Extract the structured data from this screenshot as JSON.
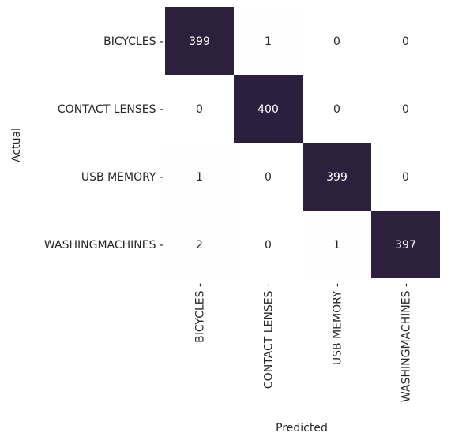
{
  "chart_data": {
    "type": "heatmap",
    "title": "",
    "xlabel": "Predicted",
    "ylabel": "Actual",
    "rows": [
      "BICYCLES",
      "CONTACT LENSES",
      "USB MEMORY",
      "WASHINGMACHINES"
    ],
    "cols": [
      "BICYCLES",
      "CONTACT LENSES",
      "USB MEMORY",
      "WASHINGMACHINES"
    ],
    "matrix": [
      [
        399,
        1,
        0,
        0
      ],
      [
        0,
        400,
        0,
        0
      ],
      [
        1,
        0,
        399,
        0
      ],
      [
        2,
        0,
        1,
        397
      ]
    ],
    "colorbar": false,
    "grid": false,
    "colors": {
      "high": "#2c1f3d",
      "low": "#ffffff",
      "text_on_dark": "#ffffff",
      "text_on_light": "#262626"
    }
  }
}
